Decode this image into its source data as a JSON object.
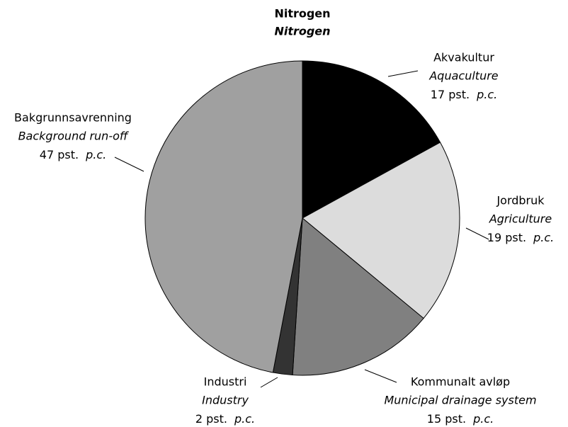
{
  "chart_data": {
    "type": "pie",
    "title": "Nitrogen",
    "subtitle": "Nitrogen",
    "categories": [
      "Akvakultur",
      "Jordbruk",
      "Kommunalt avløp",
      "Industri",
      "Bakgrunnsavrenning"
    ],
    "categories_english": [
      "Aquaculture",
      "Agriculture",
      "Municipal drainage system",
      "Industry",
      "Background run-off"
    ],
    "values": [
      17,
      19,
      15,
      2,
      47
    ],
    "value_labels": [
      "17 pst.",
      "19 pst.",
      "15 pst.",
      "2 pst.",
      "47 pst."
    ],
    "unit_english": "p.c.",
    "colors": [
      "#000000",
      "#dcdcdc",
      "#808080",
      "#333333",
      "#a0a0a0"
    ]
  }
}
